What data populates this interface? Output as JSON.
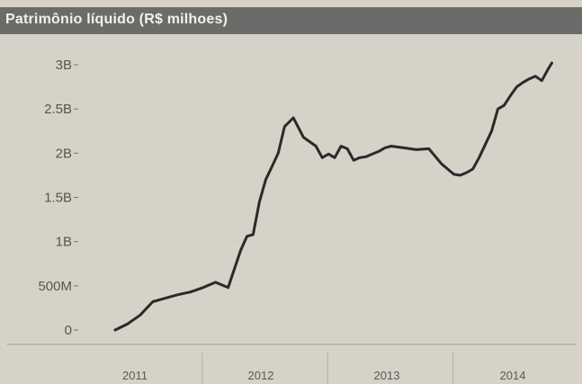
{
  "header": {
    "title": "Patrimônio líquido (R$ milhoes)"
  },
  "colors": {
    "background": "#d6d2c7",
    "header_bg": "#6b6b69",
    "line": "#2a2a2a",
    "grid": "#bdb8ad",
    "text": "#555552"
  },
  "chart_data": {
    "type": "line",
    "title": "Patrimônio líquido (R$ milhoes)",
    "xlabel": "",
    "ylabel": "",
    "x_ticks": [
      "2011",
      "2012",
      "2013",
      "2014"
    ],
    "y_ticks": [
      "0",
      "500M",
      "1B",
      "1.5B",
      "2B",
      "2.5B",
      "3B"
    ],
    "y_tick_values": [
      0,
      500,
      1000,
      1500,
      2000,
      2500,
      3000
    ],
    "ylim": [
      0,
      3000
    ],
    "xlim": [
      2010.6,
      2014.95
    ],
    "grid": true,
    "series": [
      {
        "x": [
          2011.0,
          2011.1,
          2011.2,
          2011.3,
          2011.4,
          2011.5,
          2011.6,
          2011.7,
          2011.8,
          2011.9,
          2012.0,
          2012.05,
          2012.1,
          2012.15,
          2012.2,
          2012.25,
          2012.3,
          2012.35,
          2012.42,
          2012.5,
          2012.6,
          2012.65,
          2012.7,
          2012.75,
          2012.8,
          2012.85,
          2012.9,
          2012.95,
          2013.0,
          2013.05,
          2013.1,
          2013.15,
          2013.2,
          2013.3,
          2013.4,
          2013.5,
          2013.6,
          2013.7,
          2013.75,
          2013.8,
          2013.85,
          2013.9,
          2014.0,
          2014.05,
          2014.1,
          2014.15,
          2014.2,
          2014.25,
          2014.3,
          2014.35,
          2014.4,
          2014.45,
          2014.48
        ],
        "values": [
          0,
          70,
          170,
          320,
          360,
          400,
          430,
          480,
          540,
          480,
          900,
          1060,
          1080,
          1450,
          1700,
          1850,
          2000,
          2300,
          2400,
          2180,
          2080,
          1950,
          1990,
          1950,
          2080,
          2050,
          1920,
          1950,
          1960,
          1990,
          2020,
          2060,
          2080,
          2060,
          2040,
          2050,
          1880,
          1760,
          1750,
          1780,
          1820,
          1950,
          2250,
          2500,
          2540,
          2650,
          2750,
          2800,
          2840,
          2870,
          2820,
          2950,
          3020
        ]
      }
    ]
  }
}
